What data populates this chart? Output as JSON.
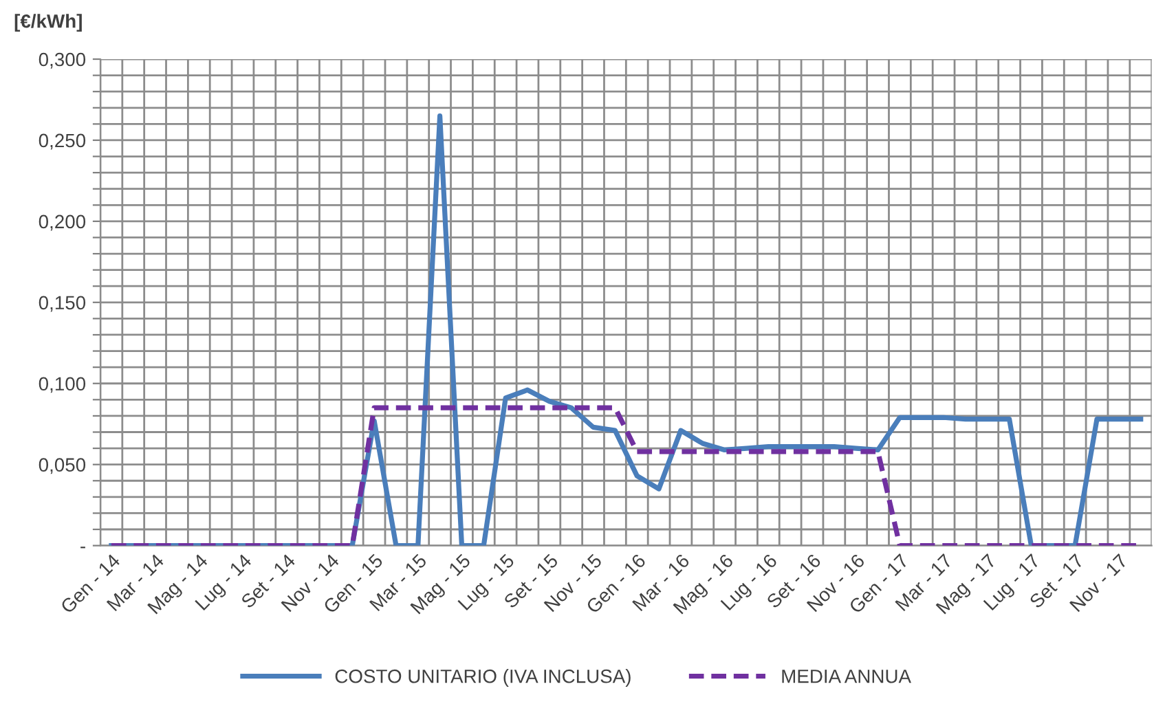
{
  "chart_data": {
    "type": "line",
    "ylabel": "[€/kWh]",
    "categories": [
      "Gen - 14",
      null,
      "Mar - 14",
      null,
      "Mag - 14",
      null,
      "Lug - 14",
      null,
      "Set - 14",
      null,
      "Nov - 14",
      null,
      "Gen - 15",
      null,
      "Mar - 15",
      null,
      "Mag - 15",
      null,
      "Lug - 15",
      null,
      "Set - 15",
      null,
      "Nov - 15",
      null,
      "Gen - 16",
      null,
      "Mar - 16",
      null,
      "Mag - 16",
      null,
      "Lug - 16",
      null,
      "Set - 16",
      null,
      "Nov - 16",
      null,
      "Gen - 17",
      null,
      "Mar - 17",
      null,
      "Mag - 17",
      null,
      "Lug - 17",
      null,
      "Set - 17",
      null,
      "Nov - 17",
      null
    ],
    "series": [
      {
        "name": "COSTO UNITARIO (IVA INCLUSA)",
        "color": "#4a7ebb",
        "line_style": "solid",
        "values": [
          0,
          0,
          0,
          0,
          0,
          0,
          0,
          0,
          0,
          0,
          0,
          0,
          0.077,
          0,
          0,
          0.265,
          0,
          0,
          0.091,
          0.096,
          0.089,
          0.085,
          0.073,
          0.071,
          0.043,
          0.035,
          0.071,
          0.063,
          0.059,
          0.06,
          0.061,
          0.061,
          0.061,
          0.061,
          0.06,
          0.059,
          0.079,
          0.079,
          0.079,
          0.078,
          0.078,
          0.078,
          0,
          0,
          0,
          0.078,
          0.078,
          0.078
        ]
      },
      {
        "name": "MEDIA ANNUA",
        "color": "#7030a0",
        "line_style": "dashed",
        "values": [
          0,
          0,
          0,
          0,
          0,
          0,
          0,
          0,
          0,
          0,
          0,
          0,
          0.085,
          0.085,
          0.085,
          0.085,
          0.085,
          0.085,
          0.085,
          0.085,
          0.085,
          0.085,
          0.085,
          0.085,
          0.058,
          0.058,
          0.058,
          0.058,
          0.058,
          0.058,
          0.058,
          0.058,
          0.058,
          0.058,
          0.058,
          0.058,
          0,
          0,
          0,
          0,
          0,
          0,
          0,
          0,
          0,
          0,
          0,
          0
        ]
      }
    ],
    "ylim": [
      0,
      0.3
    ],
    "yticks": [
      {
        "value": 0,
        "label": "-"
      },
      {
        "value": 0.01,
        "label": null
      },
      {
        "value": 0.02,
        "label": null
      },
      {
        "value": 0.03,
        "label": null
      },
      {
        "value": 0.04,
        "label": null
      },
      {
        "value": 0.05,
        "label": "0,050"
      },
      {
        "value": 0.06,
        "label": null
      },
      {
        "value": 0.07,
        "label": null
      },
      {
        "value": 0.08,
        "label": null
      },
      {
        "value": 0.09,
        "label": null
      },
      {
        "value": 0.1,
        "label": "0,100"
      },
      {
        "value": 0.11,
        "label": null
      },
      {
        "value": 0.12,
        "label": null
      },
      {
        "value": 0.13,
        "label": null
      },
      {
        "value": 0.14,
        "label": null
      },
      {
        "value": 0.15,
        "label": "0,150"
      },
      {
        "value": 0.16,
        "label": null
      },
      {
        "value": 0.17,
        "label": null
      },
      {
        "value": 0.18,
        "label": null
      },
      {
        "value": 0.19,
        "label": null
      },
      {
        "value": 0.2,
        "label": "0,200"
      },
      {
        "value": 0.21,
        "label": null
      },
      {
        "value": 0.22,
        "label": null
      },
      {
        "value": 0.23,
        "label": null
      },
      {
        "value": 0.24,
        "label": null
      },
      {
        "value": 0.25,
        "label": "0,250"
      },
      {
        "value": 0.26,
        "label": null
      },
      {
        "value": 0.27,
        "label": null
      },
      {
        "value": 0.28,
        "label": null
      },
      {
        "value": 0.29,
        "label": null
      },
      {
        "value": 0.3,
        "label": "0,300"
      }
    ],
    "grid": true,
    "legend": "bottom"
  }
}
